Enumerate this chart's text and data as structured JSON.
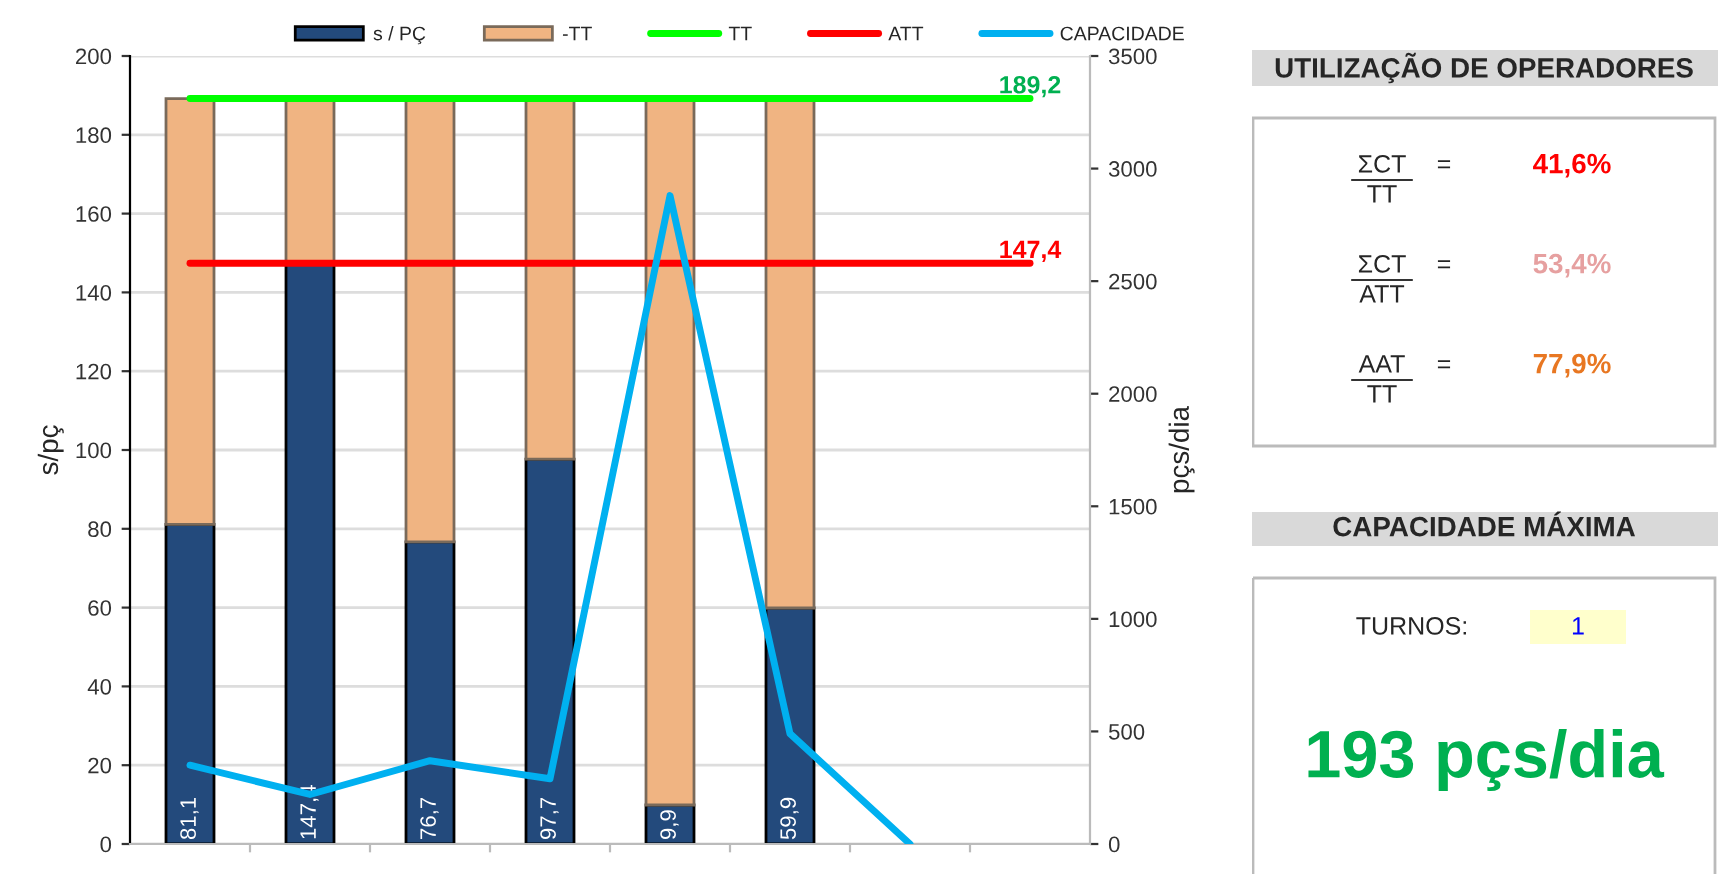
{
  "chart_data": [
    {
      "type": "bar",
      "stacked": true,
      "categories": [
        null,
        null,
        null,
        null,
        null,
        null,
        null,
        null
      ],
      "series": [
        {
          "name": "s / PÇ",
          "type": "bar",
          "color": "#234a7c",
          "values": [
            81.1,
            147.4,
            76.7,
            97.7,
            9.9,
            59.9,
            null,
            null
          ],
          "value_labels": [
            "81,1",
            "147,4",
            "76,7",
            "97,7",
            "9,9",
            "59,9",
            null,
            null
          ]
        },
        {
          "name": "-TT",
          "type": "bar",
          "color": "#f0b482",
          "values": [
            108.1,
            41.8,
            112.5,
            91.5,
            179.3,
            129.3,
            null,
            null
          ]
        },
        {
          "name": "TT",
          "type": "line",
          "color": "#00ff00",
          "values": [
            189.2,
            189.2,
            189.2,
            189.2,
            189.2,
            189.2,
            189.2,
            189.2
          ],
          "value_labels": [
            null,
            null,
            null,
            null,
            null,
            null,
            null,
            "189,2"
          ]
        },
        {
          "name": "ATT",
          "type": "line",
          "color": "#ff0000",
          "values": [
            147.4,
            147.4,
            147.4,
            147.4,
            147.4,
            147.4,
            147.4,
            147.4
          ],
          "value_labels": [
            null,
            null,
            null,
            null,
            null,
            null,
            null,
            "147,4"
          ]
        },
        {
          "name": "CAPACIDADE",
          "type": "line",
          "axis": "y2",
          "color": "#00b0f0",
          "values": [
            350,
            220,
            370,
            290,
            2880,
            490,
            0,
            null
          ]
        }
      ],
      "ylabel": "s/pç",
      "y2label": "pçs/dia",
      "ylim": [
        0,
        200
      ],
      "yticks": [
        0,
        20,
        40,
        60,
        80,
        100,
        120,
        140,
        160,
        180,
        200
      ],
      "y2lim": [
        0,
        3500
      ],
      "y2ticks": [
        0,
        500,
        1000,
        1500,
        2000,
        2500,
        3000,
        3500
      ],
      "grid": "y",
      "legend": "top",
      "tick_labels": "y"
    },
    {
      "type": "other",
      "title": "UTILIZAÇÃO DE OPERADORES",
      "annotations": [
        "ΣCT",
        "TT",
        "=",
        "41,6%",
        "ΣCT",
        "ATT",
        "=",
        "53,4%",
        "AAT",
        "TT",
        "=",
        "77,9%"
      ],
      "colors": [
        "#ff0000",
        "#e6a0a0",
        "#e87722"
      ]
    },
    {
      "type": "other",
      "title": "CAPACIDADE MÁXIMA",
      "annotations": [
        "TURNOS:",
        "1",
        "193 pçs/dia"
      ]
    }
  ]
}
